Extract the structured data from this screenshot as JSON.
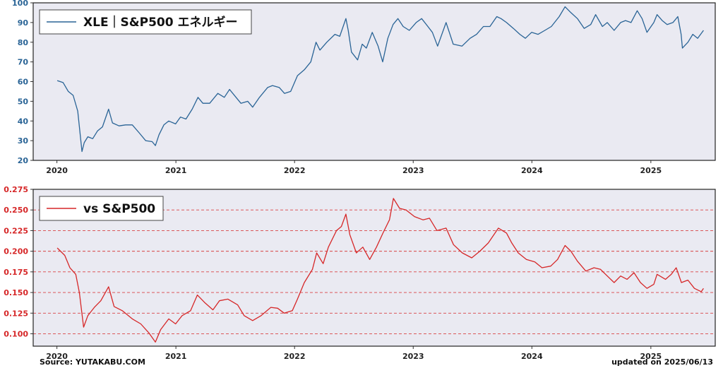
{
  "footer": {
    "source": "Source: YUTAKABU.COM",
    "updated": "updated on 2025/06/13"
  },
  "chart_data": [
    {
      "type": "line",
      "legend": "XLE｜S&P500 エネルギー",
      "legend_position": "top-left",
      "grid": false,
      "color": "#2a6496",
      "xlim": [
        "2019-10-20",
        "2025-07-18"
      ],
      "ylim": [
        20,
        100
      ],
      "x_ticks": [
        "2020",
        "2021",
        "2022",
        "2023",
        "2024",
        "2025"
      ],
      "y_ticks": [
        20,
        30,
        40,
        50,
        60,
        70,
        80,
        90,
        100
      ],
      "series": [
        {
          "points": [
            [
              "2020-01-02",
              60.5
            ],
            [
              "2020-01-20",
              59.5
            ],
            [
              "2020-02-05",
              55
            ],
            [
              "2020-02-20",
              53
            ],
            [
              "2020-03-05",
              45
            ],
            [
              "2020-03-18",
              24.5
            ],
            [
              "2020-03-25",
              29
            ],
            [
              "2020-04-05",
              32
            ],
            [
              "2020-04-20",
              31
            ],
            [
              "2020-05-05",
              35
            ],
            [
              "2020-05-20",
              37
            ],
            [
              "2020-06-08",
              46
            ],
            [
              "2020-06-20",
              39
            ],
            [
              "2020-07-10",
              37.5
            ],
            [
              "2020-07-30",
              38
            ],
            [
              "2020-08-20",
              38
            ],
            [
              "2020-09-10",
              34
            ],
            [
              "2020-09-30",
              30
            ],
            [
              "2020-10-20",
              29.5
            ],
            [
              "2020-10-30",
              27.5
            ],
            [
              "2020-11-10",
              33
            ],
            [
              "2020-11-25",
              38
            ],
            [
              "2020-12-10",
              40
            ],
            [
              "2020-12-31",
              38.5
            ],
            [
              "2021-01-15",
              42
            ],
            [
              "2021-02-01",
              41
            ],
            [
              "2021-02-20",
              46
            ],
            [
              "2021-03-10",
              52
            ],
            [
              "2021-03-25",
              49
            ],
            [
              "2021-04-15",
              49
            ],
            [
              "2021-05-10",
              54
            ],
            [
              "2021-05-30",
              52
            ],
            [
              "2021-06-15",
              56
            ],
            [
              "2021-07-05",
              52
            ],
            [
              "2021-07-20",
              49
            ],
            [
              "2021-08-10",
              50
            ],
            [
              "2021-08-25",
              47
            ],
            [
              "2021-09-15",
              52
            ],
            [
              "2021-10-10",
              57
            ],
            [
              "2021-10-25",
              58
            ],
            [
              "2021-11-15",
              57
            ],
            [
              "2021-12-01",
              54
            ],
            [
              "2021-12-20",
              55
            ],
            [
              "2022-01-10",
              63
            ],
            [
              "2022-01-31",
              66
            ],
            [
              "2022-02-20",
              70
            ],
            [
              "2022-03-08",
              80
            ],
            [
              "2022-03-20",
              76
            ],
            [
              "2022-04-10",
              80
            ],
            [
              "2022-05-05",
              84
            ],
            [
              "2022-05-20",
              83
            ],
            [
              "2022-06-08",
              92
            ],
            [
              "2022-06-15",
              86
            ],
            [
              "2022-06-25",
              75
            ],
            [
              "2022-07-14",
              71
            ],
            [
              "2022-07-28",
              79
            ],
            [
              "2022-08-10",
              77
            ],
            [
              "2022-08-28",
              85
            ],
            [
              "2022-09-15",
              78
            ],
            [
              "2022-09-29",
              70
            ],
            [
              "2022-10-15",
              82
            ],
            [
              "2022-10-31",
              89
            ],
            [
              "2022-11-15",
              92
            ],
            [
              "2022-12-01",
              88
            ],
            [
              "2022-12-20",
              86
            ],
            [
              "2023-01-10",
              90
            ],
            [
              "2023-01-27",
              92
            ],
            [
              "2023-02-15",
              88
            ],
            [
              "2023-03-01",
              85
            ],
            [
              "2023-03-17",
              78
            ],
            [
              "2023-04-12",
              90
            ],
            [
              "2023-05-04",
              79
            ],
            [
              "2023-05-31",
              78
            ],
            [
              "2023-06-25",
              82
            ],
            [
              "2023-07-15",
              84
            ],
            [
              "2023-08-05",
              88
            ],
            [
              "2023-08-25",
              88
            ],
            [
              "2023-09-15",
              93
            ],
            [
              "2023-09-28",
              92
            ],
            [
              "2023-10-15",
              90
            ],
            [
              "2023-11-05",
              87
            ],
            [
              "2023-11-25",
              84
            ],
            [
              "2023-12-12",
              82
            ],
            [
              "2023-12-31",
              85
            ],
            [
              "2024-01-20",
              84
            ],
            [
              "2024-02-10",
              86
            ],
            [
              "2024-03-01",
              88
            ],
            [
              "2024-03-25",
              93
            ],
            [
              "2024-04-12",
              98
            ],
            [
              "2024-04-30",
              95
            ],
            [
              "2024-05-20",
              92
            ],
            [
              "2024-06-10",
              87
            ],
            [
              "2024-06-30",
              89
            ],
            [
              "2024-07-15",
              94
            ],
            [
              "2024-08-05",
              88
            ],
            [
              "2024-08-20",
              90
            ],
            [
              "2024-09-10",
              86
            ],
            [
              "2024-09-30",
              90
            ],
            [
              "2024-10-15",
              91
            ],
            [
              "2024-11-01",
              90
            ],
            [
              "2024-11-20",
              96
            ],
            [
              "2024-12-05",
              92
            ],
            [
              "2024-12-20",
              85
            ],
            [
              "2025-01-10",
              90
            ],
            [
              "2025-01-20",
              94
            ],
            [
              "2025-02-05",
              91
            ],
            [
              "2025-02-20",
              89
            ],
            [
              "2025-03-10",
              90
            ],
            [
              "2025-03-25",
              93
            ],
            [
              "2025-04-04",
              84
            ],
            [
              "2025-04-08",
              77
            ],
            [
              "2025-04-25",
              80
            ],
            [
              "2025-05-10",
              84
            ],
            [
              "2025-05-25",
              82
            ],
            [
              "2025-06-12",
              86
            ]
          ]
        }
      ]
    },
    {
      "type": "line",
      "legend": "vs S&P500",
      "legend_position": "top-left",
      "grid": true,
      "color": "#d62728",
      "xlim": [
        "2019-10-20",
        "2025-07-18"
      ],
      "ylim": [
        0.085,
        0.275
      ],
      "x_ticks": [
        "2020",
        "2021",
        "2022",
        "2023",
        "2024",
        "2025"
      ],
      "y_ticks": [
        "0.100",
        "0.125",
        "0.150",
        "0.175",
        "0.200",
        "0.225",
        "0.250",
        "0.275"
      ],
      "series": [
        {
          "points": [
            [
              "2020-01-02",
              0.204
            ],
            [
              "2020-01-25",
              0.195
            ],
            [
              "2020-02-10",
              0.18
            ],
            [
              "2020-02-28",
              0.172
            ],
            [
              "2020-03-10",
              0.15
            ],
            [
              "2020-03-23",
              0.108
            ],
            [
              "2020-04-05",
              0.122
            ],
            [
              "2020-04-25",
              0.132
            ],
            [
              "2020-05-15",
              0.14
            ],
            [
              "2020-06-08",
              0.157
            ],
            [
              "2020-06-25",
              0.133
            ],
            [
              "2020-07-20",
              0.128
            ],
            [
              "2020-08-20",
              0.118
            ],
            [
              "2020-09-15",
              0.112
            ],
            [
              "2020-10-10",
              0.101
            ],
            [
              "2020-10-30",
              0.09
            ],
            [
              "2020-11-15",
              0.105
            ],
            [
              "2020-12-10",
              0.118
            ],
            [
              "2020-12-31",
              0.112
            ],
            [
              "2021-01-20",
              0.122
            ],
            [
              "2021-02-15",
              0.128
            ],
            [
              "2021-03-08",
              0.147
            ],
            [
              "2021-03-30",
              0.138
            ],
            [
              "2021-04-25",
              0.129
            ],
            [
              "2021-05-15",
              0.14
            ],
            [
              "2021-06-10",
              0.142
            ],
            [
              "2021-07-10",
              0.135
            ],
            [
              "2021-07-30",
              0.122
            ],
            [
              "2021-08-25",
              0.116
            ],
            [
              "2021-09-20",
              0.122
            ],
            [
              "2021-10-20",
              0.132
            ],
            [
              "2021-11-10",
              0.131
            ],
            [
              "2021-11-30",
              0.125
            ],
            [
              "2021-12-25",
              0.128
            ],
            [
              "2022-01-10",
              0.142
            ],
            [
              "2022-01-31",
              0.162
            ],
            [
              "2022-02-25",
              0.178
            ],
            [
              "2022-03-10",
              0.198
            ],
            [
              "2022-03-30",
              0.185
            ],
            [
              "2022-04-15",
              0.205
            ],
            [
              "2022-05-10",
              0.225
            ],
            [
              "2022-05-25",
              0.23
            ],
            [
              "2022-06-08",
              0.245
            ],
            [
              "2022-06-20",
              0.22
            ],
            [
              "2022-07-10",
              0.198
            ],
            [
              "2022-07-30",
              0.205
            ],
            [
              "2022-08-20",
              0.19
            ],
            [
              "2022-09-10",
              0.205
            ],
            [
              "2022-09-30",
              0.222
            ],
            [
              "2022-10-20",
              0.238
            ],
            [
              "2022-11-01",
              0.264
            ],
            [
              "2022-11-20",
              0.252
            ],
            [
              "2022-12-10",
              0.25
            ],
            [
              "2023-01-05",
              0.242
            ],
            [
              "2023-01-31",
              0.238
            ],
            [
              "2023-02-20",
              0.24
            ],
            [
              "2023-03-15",
              0.225
            ],
            [
              "2023-04-12",
              0.228
            ],
            [
              "2023-05-05",
              0.208
            ],
            [
              "2023-06-01",
              0.198
            ],
            [
              "2023-06-30",
              0.192
            ],
            [
              "2023-07-25",
              0.2
            ],
            [
              "2023-08-20",
              0.21
            ],
            [
              "2023-09-20",
              0.228
            ],
            [
              "2023-10-15",
              0.222
            ],
            [
              "2023-10-31",
              0.21
            ],
            [
              "2023-11-20",
              0.198
            ],
            [
              "2023-12-15",
              0.19
            ],
            [
              "2024-01-10",
              0.187
            ],
            [
              "2024-02-01",
              0.18
            ],
            [
              "2024-02-28",
              0.182
            ],
            [
              "2024-03-20",
              0.19
            ],
            [
              "2024-04-12",
              0.207
            ],
            [
              "2024-04-30",
              0.2
            ],
            [
              "2024-05-20",
              0.188
            ],
            [
              "2024-06-15",
              0.176
            ],
            [
              "2024-07-10",
              0.18
            ],
            [
              "2024-07-30",
              0.178
            ],
            [
              "2024-08-20",
              0.17
            ],
            [
              "2024-09-10",
              0.162
            ],
            [
              "2024-09-30",
              0.17
            ],
            [
              "2024-10-20",
              0.166
            ],
            [
              "2024-11-10",
              0.174
            ],
            [
              "2024-11-30",
              0.162
            ],
            [
              "2024-12-20",
              0.155
            ],
            [
              "2025-01-10",
              0.16
            ],
            [
              "2025-01-20",
              0.172
            ],
            [
              "2025-02-15",
              0.166
            ],
            [
              "2025-03-05",
              0.172
            ],
            [
              "2025-03-20",
              0.18
            ],
            [
              "2025-04-05",
              0.162
            ],
            [
              "2025-04-25",
              0.165
            ],
            [
              "2025-05-15",
              0.155
            ],
            [
              "2025-06-05",
              0.151
            ],
            [
              "2025-06-12",
              0.155
            ]
          ]
        }
      ]
    }
  ]
}
